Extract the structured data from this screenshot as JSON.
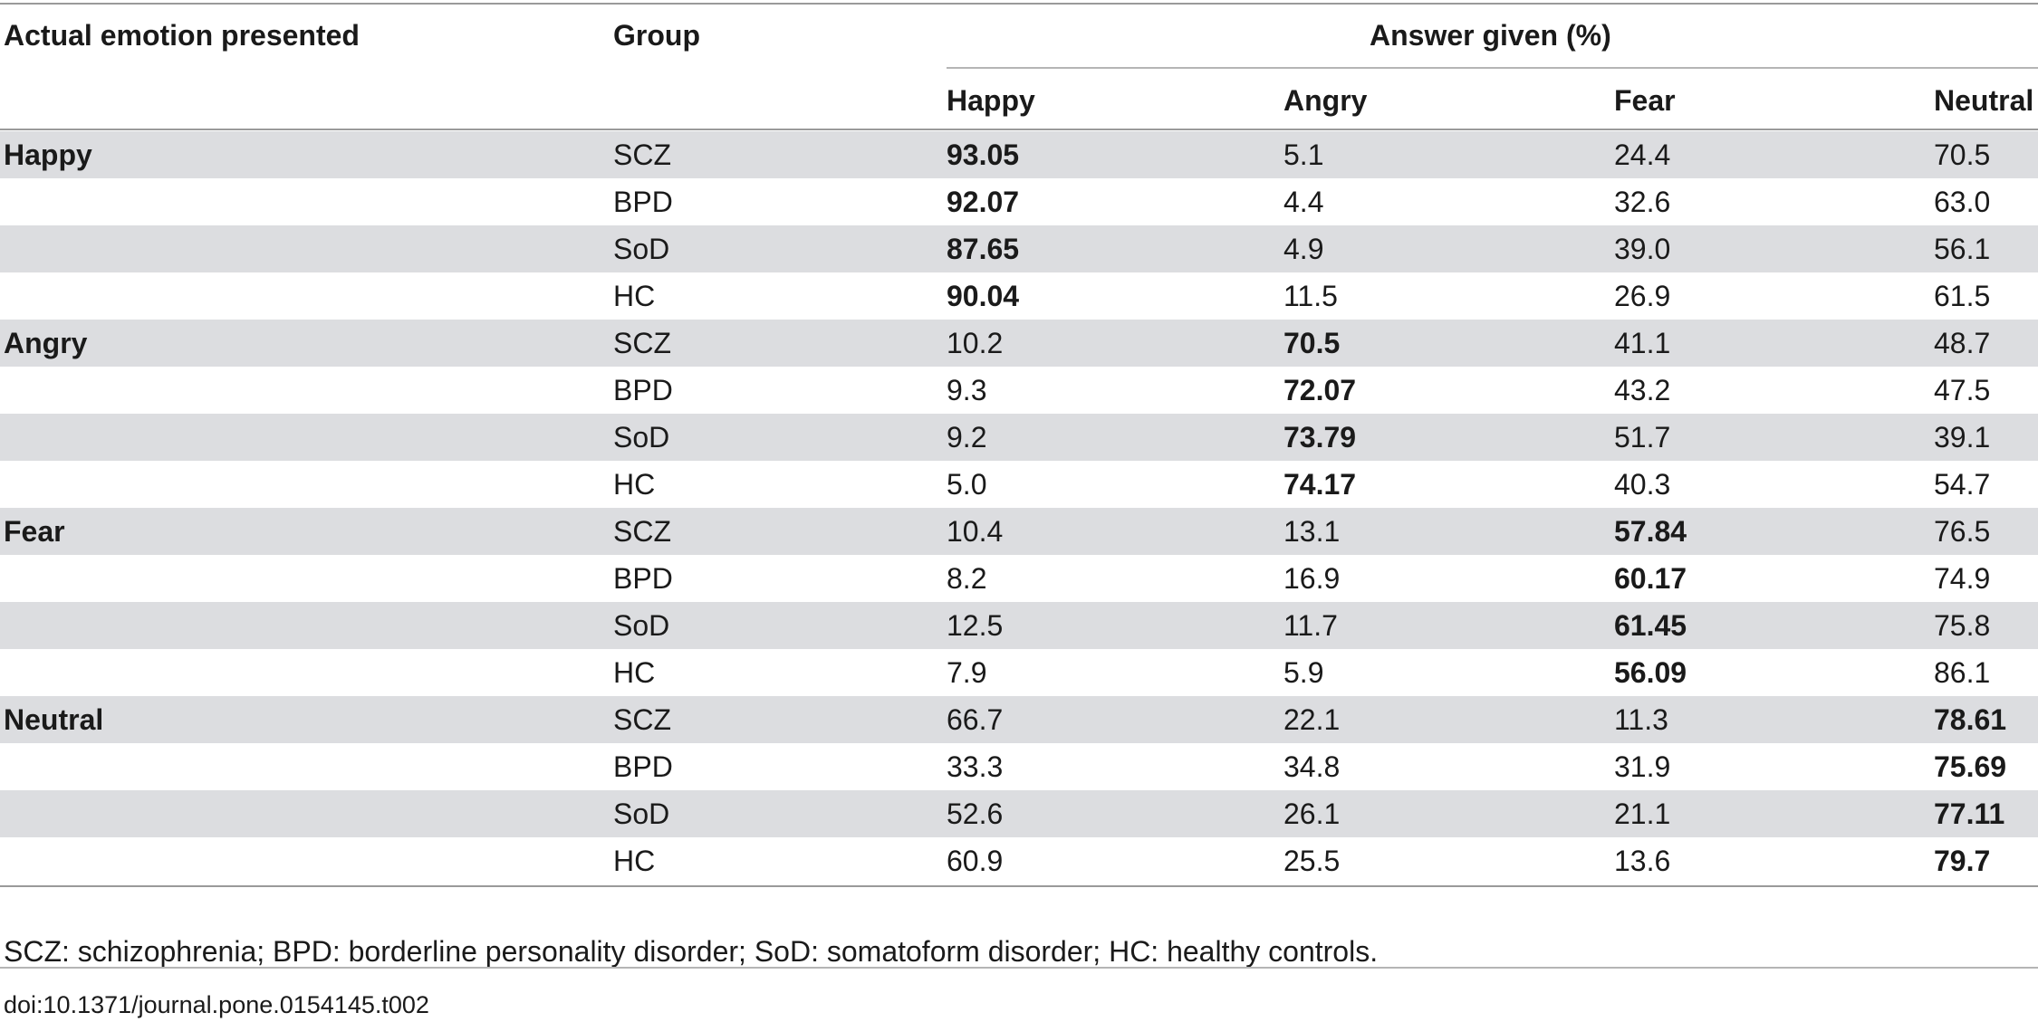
{
  "table": {
    "headers": {
      "emotion": "Actual emotion presented",
      "group": "Group",
      "answer_span": "Answer given (%)",
      "answers": [
        "Happy",
        "Angry",
        "Fear",
        "Neutral"
      ]
    },
    "rows": [
      {
        "emotion": "Happy",
        "group": "SCZ",
        "values": [
          "93.05",
          "5.1",
          "24.4",
          "70.5"
        ],
        "bold_index": 0
      },
      {
        "emotion": "",
        "group": "BPD",
        "values": [
          "92.07",
          "4.4",
          "32.6",
          "63.0"
        ],
        "bold_index": 0
      },
      {
        "emotion": "",
        "group": "SoD",
        "values": [
          "87.65",
          "4.9",
          "39.0",
          "56.1"
        ],
        "bold_index": 0
      },
      {
        "emotion": "",
        "group": "HC",
        "values": [
          "90.04",
          "11.5",
          "26.9",
          "61.5"
        ],
        "bold_index": 0
      },
      {
        "emotion": "Angry",
        "group": "SCZ",
        "values": [
          "10.2",
          "70.5",
          "41.1",
          "48.7"
        ],
        "bold_index": 1
      },
      {
        "emotion": "",
        "group": "BPD",
        "values": [
          "9.3",
          "72.07",
          "43.2",
          "47.5"
        ],
        "bold_index": 1
      },
      {
        "emotion": "",
        "group": "SoD",
        "values": [
          "9.2",
          "73.79",
          "51.7",
          "39.1"
        ],
        "bold_index": 1
      },
      {
        "emotion": "",
        "group": "HC",
        "values": [
          "5.0",
          "74.17",
          "40.3",
          "54.7"
        ],
        "bold_index": 1
      },
      {
        "emotion": "Fear",
        "group": "SCZ",
        "values": [
          "10.4",
          "13.1",
          "57.84",
          "76.5"
        ],
        "bold_index": 2
      },
      {
        "emotion": "",
        "group": "BPD",
        "values": [
          "8.2",
          "16.9",
          "60.17",
          "74.9"
        ],
        "bold_index": 2
      },
      {
        "emotion": "",
        "group": "SoD",
        "values": [
          "12.5",
          "11.7",
          "61.45",
          "75.8"
        ],
        "bold_index": 2
      },
      {
        "emotion": "",
        "group": "HC",
        "values": [
          "7.9",
          "5.9",
          "56.09",
          "86.1"
        ],
        "bold_index": 2
      },
      {
        "emotion": "Neutral",
        "group": "SCZ",
        "values": [
          "66.7",
          "22.1",
          "11.3",
          "78.61"
        ],
        "bold_index": 3
      },
      {
        "emotion": "",
        "group": "BPD",
        "values": [
          "33.3",
          "34.8",
          "31.9",
          "75.69"
        ],
        "bold_index": 3
      },
      {
        "emotion": "",
        "group": "SoD",
        "values": [
          "52.6",
          "26.1",
          "21.1",
          "77.11"
        ],
        "bold_index": 3
      },
      {
        "emotion": "",
        "group": "HC",
        "values": [
          "60.9",
          "25.5",
          "13.6",
          "79.7"
        ],
        "bold_index": 3
      }
    ]
  },
  "footnote": "SCZ: schizophrenia; BPD: borderline personality disorder; SoD: somatoform disorder; HC: healthy controls.",
  "doi": "doi:10.1371/journal.pone.0154145.t002"
}
